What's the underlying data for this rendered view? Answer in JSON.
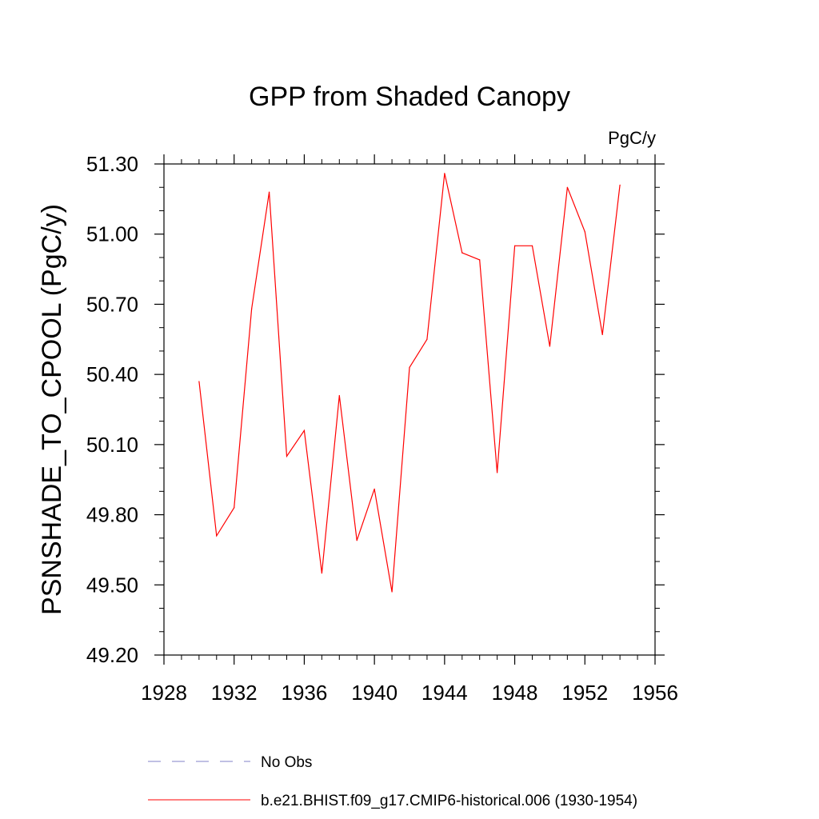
{
  "chart_data": {
    "type": "line",
    "title": "GPP from Shaded Canopy",
    "units": "PgC/y",
    "ylabel": "PSNSHADE_TO_CPOOL  (PgC/y)",
    "xlabel": "",
    "xlim": [
      1928,
      1956
    ],
    "ylim": [
      49.2,
      51.3
    ],
    "xticks": [
      1928,
      1932,
      1936,
      1940,
      1944,
      1948,
      1952,
      1956
    ],
    "yticks": [
      49.2,
      49.5,
      49.8,
      50.1,
      50.4,
      50.7,
      51.0,
      51.3
    ],
    "ytick_labels": [
      "49.20",
      "49.50",
      "49.80",
      "50.10",
      "50.40",
      "50.70",
      "51.00",
      "51.30"
    ],
    "grid": false,
    "series": [
      {
        "name": "b.e21.BHIST.f09_g17.CMIP6-historical.006 (1930-1954)",
        "color": "#ff0000",
        "style": "solid",
        "x": [
          1930,
          1931,
          1932,
          1933,
          1934,
          1935,
          1936,
          1937,
          1938,
          1939,
          1940,
          1941,
          1942,
          1943,
          1944,
          1945,
          1946,
          1947,
          1948,
          1949,
          1950,
          1951,
          1952,
          1953,
          1954
        ],
        "values": [
          50.37,
          49.71,
          49.83,
          50.68,
          51.18,
          50.05,
          50.16,
          49.55,
          50.31,
          49.69,
          49.91,
          49.47,
          50.43,
          50.55,
          51.26,
          50.92,
          50.89,
          49.98,
          50.95,
          50.95,
          50.52,
          51.2,
          51.01,
          50.57,
          51.21
        ]
      }
    ],
    "legend": [
      {
        "label": "No Obs",
        "color": "#8080c8",
        "style": "dashed"
      },
      {
        "label": "b.e21.BHIST.f09_g17.CMIP6-historical.006 (1930-1954)",
        "color": "#ff0000",
        "style": "solid"
      }
    ]
  }
}
